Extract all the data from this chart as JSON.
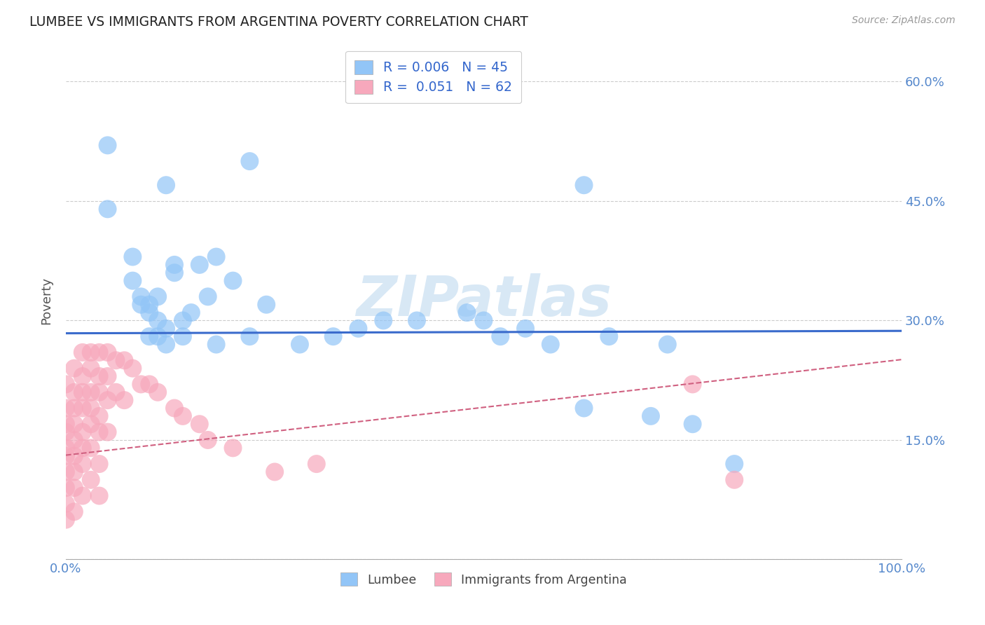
{
  "title": "LUMBEE VS IMMIGRANTS FROM ARGENTINA POVERTY CORRELATION CHART",
  "source": "Source: ZipAtlas.com",
  "ylabel": "Poverty",
  "legend_lumbee": "Lumbee",
  "legend_argentina": "Immigrants from Argentina",
  "r_lumbee": 0.006,
  "n_lumbee": 45,
  "r_argentina": 0.051,
  "n_argentina": 62,
  "color_lumbee": "#92c5f7",
  "color_argentina": "#f7a8bc",
  "color_lumbee_line": "#3a6bcc",
  "color_argentina_line": "#d06080",
  "watermark_color": "#d8e8f5",
  "ytick_vals": [
    0.0,
    0.15,
    0.3,
    0.45,
    0.6
  ],
  "ytick_labels": [
    "",
    "15.0%",
    "30.0%",
    "45.0%",
    "60.0%"
  ],
  "lumbee_x": [
    0.05,
    0.12,
    0.22,
    0.05,
    0.08,
    0.08,
    0.09,
    0.09,
    0.1,
    0.1,
    0.1,
    0.11,
    0.11,
    0.11,
    0.12,
    0.12,
    0.13,
    0.13,
    0.14,
    0.14,
    0.15,
    0.16,
    0.17,
    0.18,
    0.2,
    0.22,
    0.24,
    0.28,
    0.32,
    0.35,
    0.38,
    0.42,
    0.48,
    0.5,
    0.52,
    0.55,
    0.58,
    0.62,
    0.65,
    0.7,
    0.72,
    0.75,
    0.8,
    0.62,
    0.18
  ],
  "lumbee_y": [
    0.52,
    0.47,
    0.5,
    0.44,
    0.38,
    0.35,
    0.33,
    0.32,
    0.31,
    0.32,
    0.28,
    0.33,
    0.3,
    0.28,
    0.27,
    0.29,
    0.37,
    0.36,
    0.28,
    0.3,
    0.31,
    0.37,
    0.33,
    0.38,
    0.35,
    0.28,
    0.32,
    0.27,
    0.28,
    0.29,
    0.3,
    0.3,
    0.31,
    0.3,
    0.28,
    0.29,
    0.27,
    0.19,
    0.28,
    0.18,
    0.27,
    0.17,
    0.12,
    0.47,
    0.27
  ],
  "argentina_x": [
    0.0,
    0.0,
    0.0,
    0.0,
    0.0,
    0.0,
    0.0,
    0.0,
    0.0,
    0.0,
    0.01,
    0.01,
    0.01,
    0.01,
    0.01,
    0.01,
    0.01,
    0.01,
    0.01,
    0.02,
    0.02,
    0.02,
    0.02,
    0.02,
    0.02,
    0.02,
    0.02,
    0.03,
    0.03,
    0.03,
    0.03,
    0.03,
    0.03,
    0.03,
    0.04,
    0.04,
    0.04,
    0.04,
    0.04,
    0.04,
    0.04,
    0.05,
    0.05,
    0.05,
    0.05,
    0.06,
    0.06,
    0.07,
    0.07,
    0.08,
    0.09,
    0.1,
    0.11,
    0.13,
    0.14,
    0.16,
    0.17,
    0.2,
    0.25,
    0.3,
    0.75,
    0.8
  ],
  "argentina_y": [
    0.22,
    0.19,
    0.17,
    0.16,
    0.14,
    0.13,
    0.11,
    0.09,
    0.07,
    0.05,
    0.24,
    0.21,
    0.19,
    0.17,
    0.15,
    0.13,
    0.11,
    0.09,
    0.06,
    0.26,
    0.23,
    0.21,
    0.19,
    0.16,
    0.14,
    0.12,
    0.08,
    0.26,
    0.24,
    0.21,
    0.19,
    0.17,
    0.14,
    0.1,
    0.26,
    0.23,
    0.21,
    0.18,
    0.16,
    0.12,
    0.08,
    0.26,
    0.23,
    0.2,
    0.16,
    0.25,
    0.21,
    0.25,
    0.2,
    0.24,
    0.22,
    0.22,
    0.21,
    0.19,
    0.18,
    0.17,
    0.15,
    0.14,
    0.11,
    0.12,
    0.22,
    0.1
  ]
}
